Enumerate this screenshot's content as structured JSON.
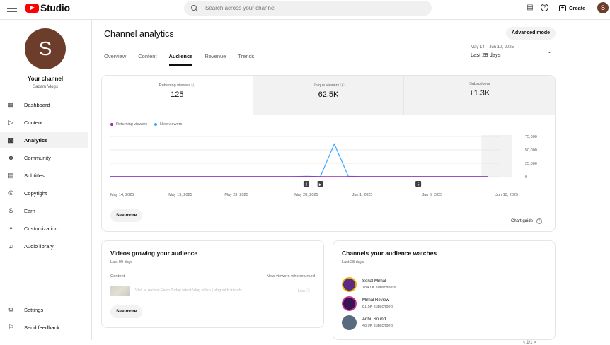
{
  "app": {
    "logo_text": "Studio"
  },
  "search": {
    "placeholder": "Search across your channel"
  },
  "header": {
    "create_label": "Create",
    "avatar_letter": "S"
  },
  "sidebar": {
    "avatar_letter": "S",
    "your_channel": "Your channel",
    "channel_name": "Sadam Vlogs",
    "items": [
      {
        "label": "Dashboard",
        "icon": "dashboard-icon"
      },
      {
        "label": "Content",
        "icon": "content-icon"
      },
      {
        "label": "Analytics",
        "icon": "analytics-icon",
        "active": true
      },
      {
        "label": "Community",
        "icon": "community-icon"
      },
      {
        "label": "Subtitles",
        "icon": "subtitles-icon"
      },
      {
        "label": "Copyright",
        "icon": "copyright-icon"
      },
      {
        "label": "Earn",
        "icon": "earn-icon"
      },
      {
        "label": "Customization",
        "icon": "customization-icon"
      },
      {
        "label": "Audio library",
        "icon": "audio-library-icon"
      }
    ],
    "footer": [
      {
        "label": "Settings",
        "icon": "settings-icon"
      },
      {
        "label": "Send feedback",
        "icon": "feedback-icon"
      }
    ]
  },
  "main": {
    "title": "Channel analytics",
    "advanced_mode": "Advanced mode",
    "tabs": [
      "Overview",
      "Content",
      "Audience",
      "Revenue",
      "Trends"
    ],
    "active_tab": "Audience",
    "date_range": {
      "dates": "May 14 – Jun 10, 2025",
      "label": "Last 28 days"
    }
  },
  "metrics": [
    {
      "label": "Returning viewers",
      "value": "125",
      "info": true
    },
    {
      "label": "Unique viewers",
      "value": "62.5K",
      "info": true
    },
    {
      "label": "Subscribers",
      "value": "+1.3K",
      "info": false
    }
  ],
  "chart_data": {
    "type": "line",
    "x": [
      "May 14, 2025",
      "May 15",
      "May 16",
      "May 17",
      "May 18",
      "May 19, 2025",
      "May 20",
      "May 21",
      "May 22",
      "May 23, 2025",
      "May 24",
      "May 25",
      "May 26",
      "May 27",
      "May 28, 2025",
      "May 29",
      "May 30",
      "May 31",
      "Jun 1, 2025",
      "Jun 2",
      "Jun 3",
      "Jun 4",
      "Jun 5",
      "Jun 6, 2025",
      "Jun 7",
      "Jun 8",
      "Jun 9",
      "Jun 10, 2025"
    ],
    "x_tick_labels": [
      "May 14, 2025",
      "May 19, 2025",
      "May 23, 2025",
      "May 28, 2025",
      "Jun 1, 2025",
      "Jun 6, 2025",
      "Jun 10, 2025"
    ],
    "series": [
      {
        "name": "Returning viewers",
        "color": "#9c27b0",
        "values": [
          20,
          20,
          20,
          20,
          20,
          20,
          20,
          20,
          20,
          20,
          20,
          20,
          20,
          20,
          25,
          20,
          20,
          20,
          20,
          20,
          20,
          20,
          20,
          20,
          20,
          20,
          20,
          20
        ]
      },
      {
        "name": "New viewers",
        "color": "#3ea6ff",
        "values": [
          200,
          200,
          200,
          200,
          200,
          200,
          200,
          200,
          200,
          200,
          200,
          200,
          200,
          200,
          800,
          200,
          61000,
          800,
          200,
          200,
          200,
          200,
          200,
          200,
          200,
          200,
          200,
          200
        ]
      }
    ],
    "y_ticks": [
      "75,000",
      "50,000",
      "25,000",
      "0"
    ],
    "ylim": [
      0,
      75000
    ],
    "markers": [
      "2",
      "▶",
      "5"
    ],
    "grid": true
  },
  "chart_footer": {
    "see_more": "See more",
    "chart_guide": "Chart guide"
  },
  "growing": {
    "title": "Videos growing your audience",
    "subtitle": "Last 90 days",
    "col_content": "Content",
    "col_metric": "New viewers who returned",
    "video_title": "Visit at Animal Farm Today latest Vlog video | vlog with friends",
    "video_value": "Low",
    "see_more": "See more"
  },
  "channels": {
    "title": "Channels your audience watches",
    "subtitle": "Last 28 days",
    "items": [
      {
        "name": "Serial Mirnal",
        "subs": "184.0K subscribers",
        "color": "#5b2a86"
      },
      {
        "name": "Mirnal Review",
        "subs": "81.5K subscribers",
        "color": "#3a1452"
      },
      {
        "name": "Anbu Sound",
        "subs": "48.9K subscribers",
        "color": "#5a6b7d"
      }
    ],
    "pager": "< 1/1 >"
  }
}
